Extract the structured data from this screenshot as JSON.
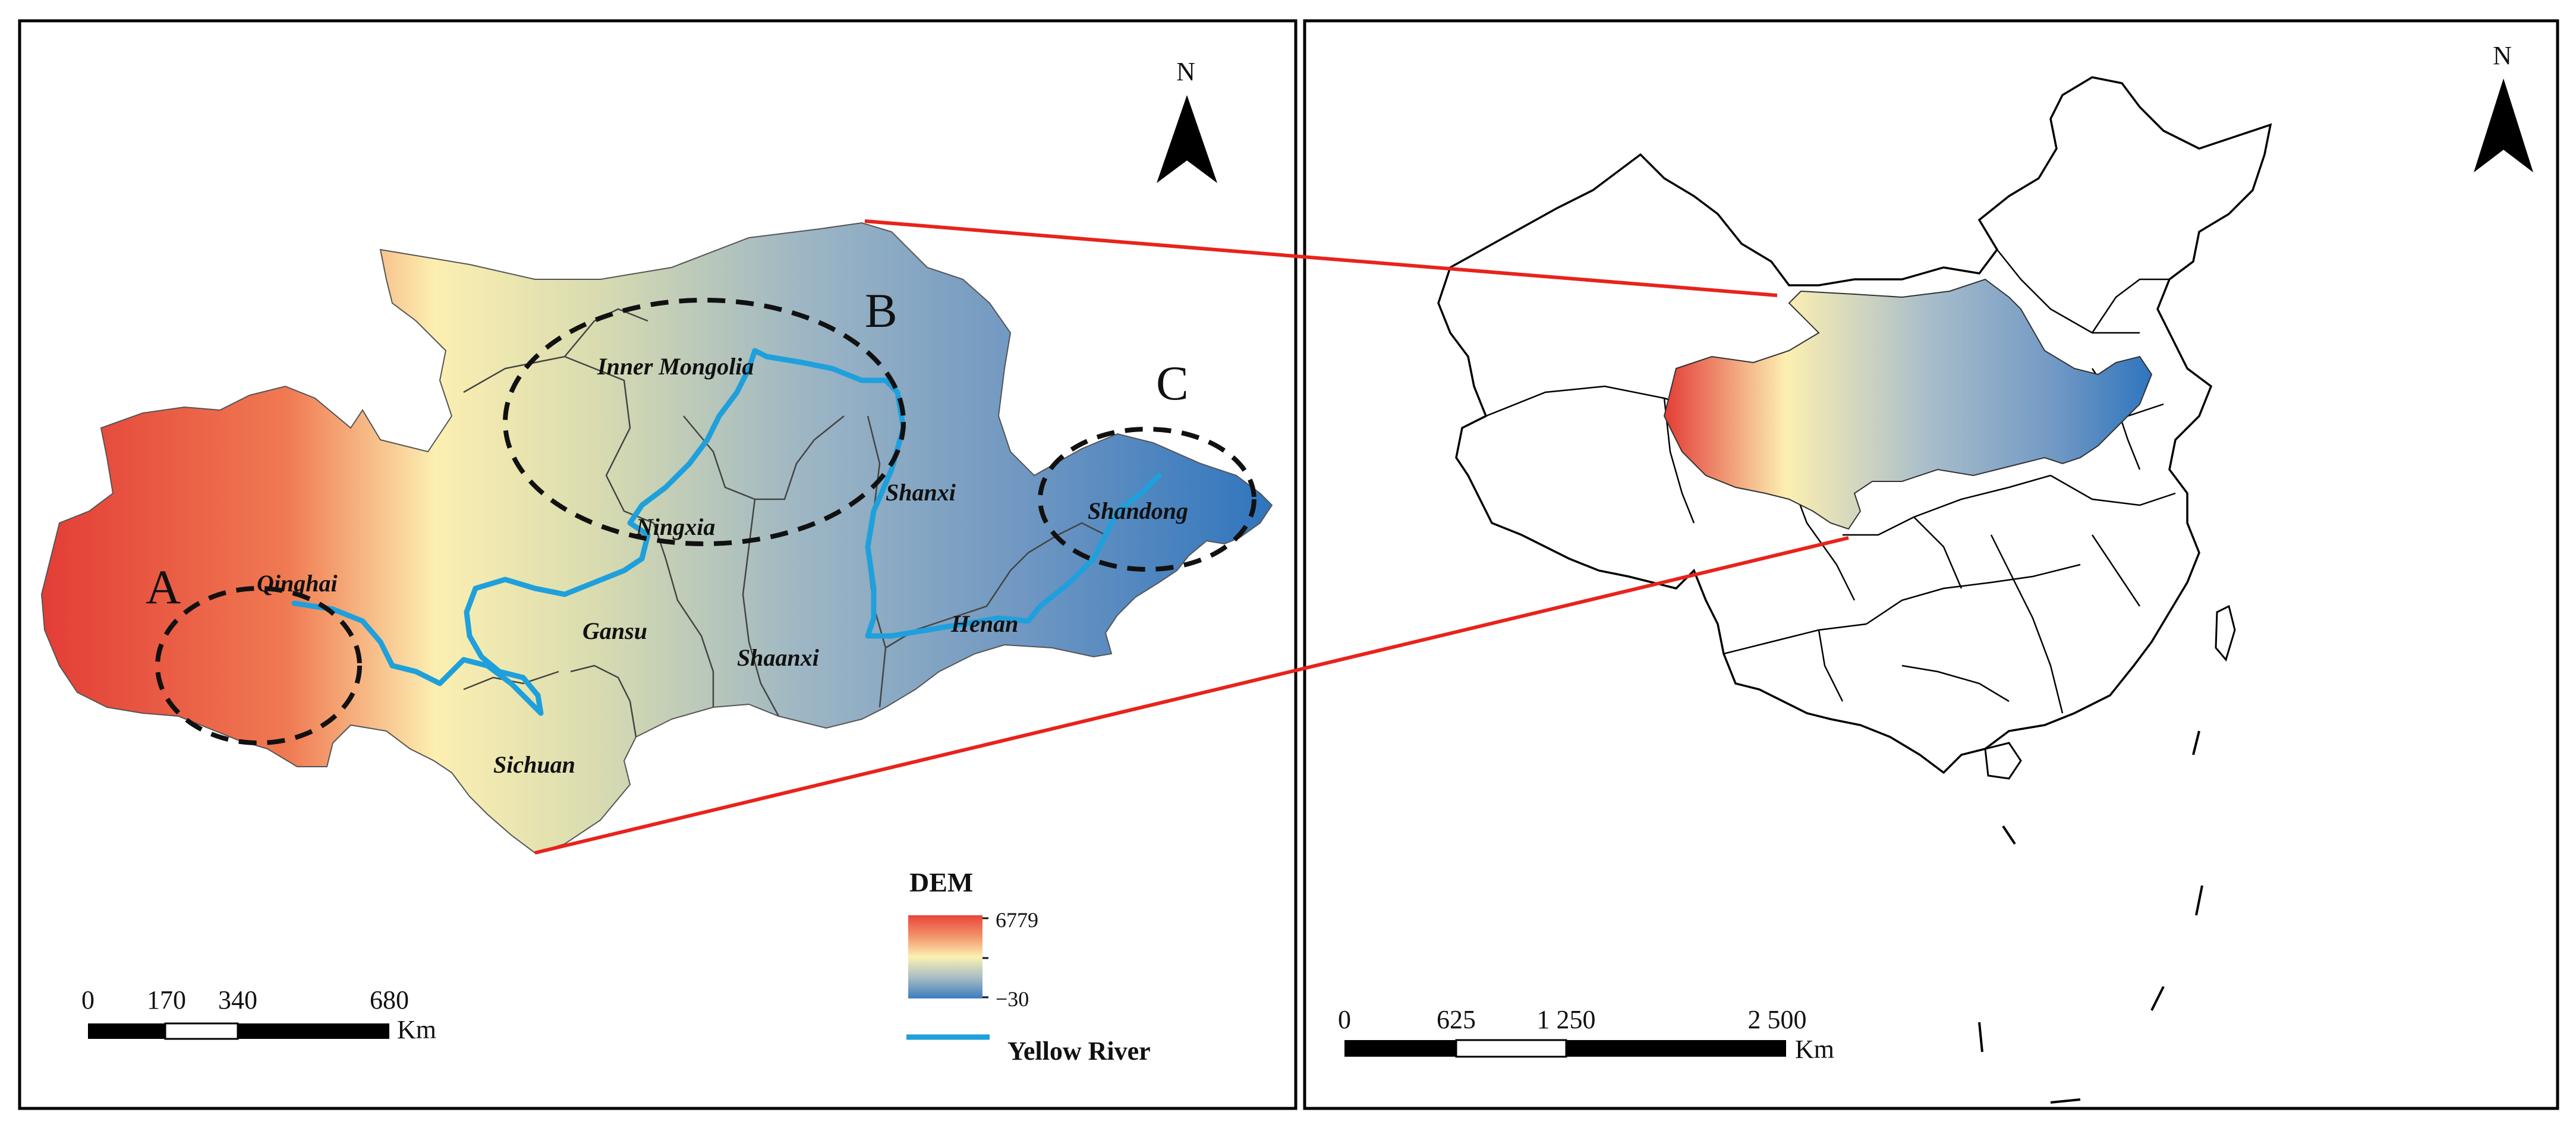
{
  "left_panel": {
    "north_label": "N",
    "region_labels": {
      "inner_mongolia": "Inner Mongolia",
      "ningxia": "Ningxia",
      "qinghai": "Qinghai",
      "gansu": "Gansu",
      "shaanxi": "Shaanxi",
      "shanxi": "Shanxi",
      "henan": "Henan",
      "shandong": "Shandong",
      "sichuan": "Sichuan"
    },
    "area_markers": {
      "a": "A",
      "b": "B",
      "c": "C"
    },
    "legend": {
      "title": "DEM",
      "max_value": "6779",
      "min_value": "−30",
      "river_label": "Yellow River",
      "colors": {
        "high": "#e8463a",
        "mid": "#fbf1b2",
        "low": "#3c7cbf"
      },
      "river_color": "#1fa0dc"
    },
    "scale_bar": {
      "ticks": [
        "0",
        "170",
        "340",
        "680"
      ],
      "unit": "Km"
    }
  },
  "right_panel": {
    "north_label": "N",
    "scale_bar": {
      "ticks": [
        "0",
        "625",
        "1 250",
        "2 500"
      ],
      "unit": "Km"
    }
  },
  "connector_color": "#e8231b"
}
